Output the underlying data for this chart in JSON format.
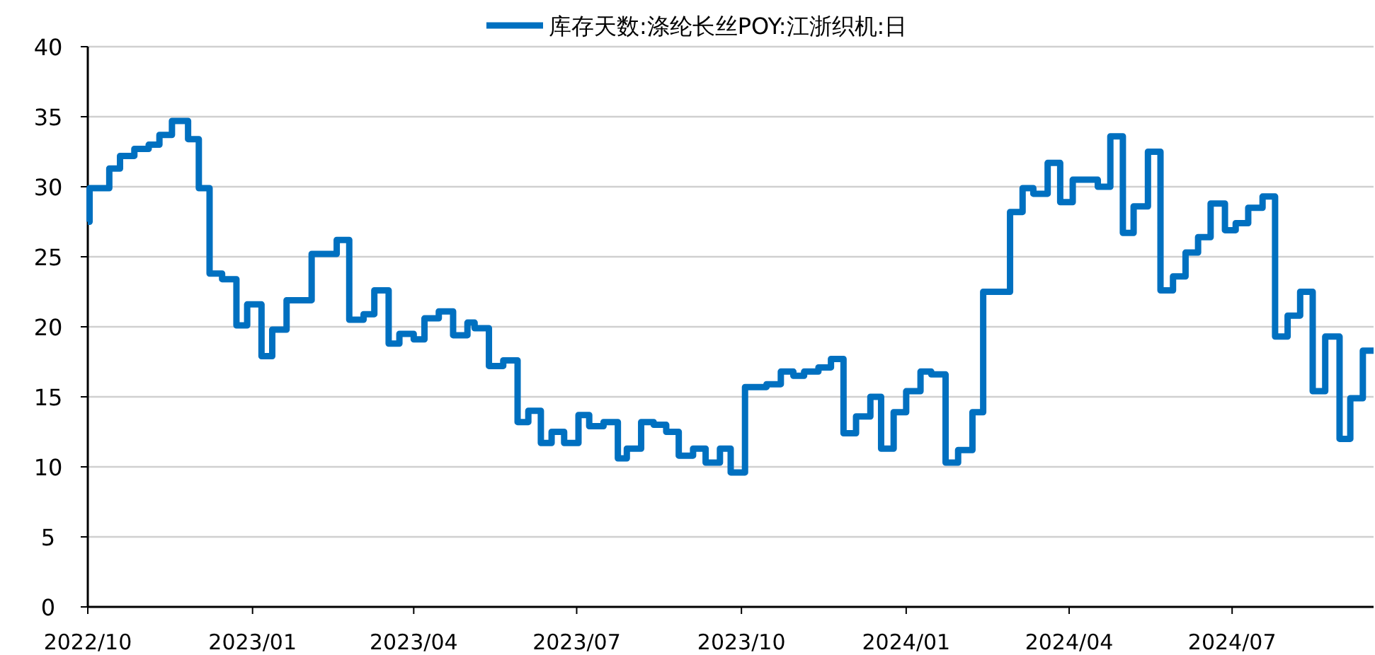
{
  "chart_data": {
    "type": "step",
    "legend": "top",
    "grid": "y",
    "line_style": "solid",
    "marker": "none",
    "xlim": [
      "2022-10-01",
      "2024-09-18"
    ],
    "xticks": [
      {
        "value": "2022-10-01",
        "label": "2022/10"
      },
      {
        "value": "2023-01-01",
        "label": "2023/01"
      },
      {
        "value": "2023-04-01",
        "label": "2023/04"
      },
      {
        "value": "2023-07-01",
        "label": "2023/07"
      },
      {
        "value": "2023-10-01",
        "label": "2023/10"
      },
      {
        "value": "2024-01-01",
        "label": "2024/01"
      },
      {
        "value": "2024-04-01",
        "label": "2024/04"
      },
      {
        "value": "2024-07-01",
        "label": "2024/07"
      }
    ],
    "ylim": [
      0,
      40
    ],
    "yticks": [
      0,
      5,
      10,
      15,
      20,
      25,
      30,
      35,
      40
    ],
    "x": [
      "2022-10-01",
      "2022-10-02",
      "2022-10-13",
      "2022-10-19",
      "2022-10-27",
      "2022-11-04",
      "2022-11-10",
      "2022-11-17",
      "2022-11-26",
      "2022-12-02",
      "2022-12-08",
      "2022-12-15",
      "2022-12-23",
      "2022-12-29",
      "2023-01-06",
      "2023-01-12",
      "2023-01-20",
      "2023-02-03",
      "2023-02-17",
      "2023-02-24",
      "2023-03-04",
      "2023-03-10",
      "2023-03-18",
      "2023-03-24",
      "2023-04-01",
      "2023-04-07",
      "2023-04-15",
      "2023-04-23",
      "2023-05-01",
      "2023-05-05",
      "2023-05-13",
      "2023-05-21",
      "2023-05-29",
      "2023-06-04",
      "2023-06-11",
      "2023-06-17",
      "2023-06-24",
      "2023-07-02",
      "2023-07-08",
      "2023-07-16",
      "2023-07-24",
      "2023-07-29",
      "2023-08-06",
      "2023-08-13",
      "2023-08-20",
      "2023-08-27",
      "2023-09-04",
      "2023-09-11",
      "2023-09-19",
      "2023-09-25",
      "2023-10-03",
      "2023-10-15",
      "2023-10-23",
      "2023-10-30",
      "2023-11-05",
      "2023-11-13",
      "2023-11-20",
      "2023-11-27",
      "2023-12-04",
      "2023-12-12",
      "2023-12-18",
      "2023-12-25",
      "2024-01-01",
      "2024-01-09",
      "2024-01-15",
      "2024-01-23",
      "2024-01-30",
      "2024-02-07",
      "2024-02-13",
      "2024-02-28",
      "2024-03-06",
      "2024-03-12",
      "2024-03-20",
      "2024-03-27",
      "2024-04-03",
      "2024-04-17",
      "2024-04-24",
      "2024-05-01",
      "2024-05-07",
      "2024-05-15",
      "2024-05-22",
      "2024-05-29",
      "2024-06-05",
      "2024-06-12",
      "2024-06-19",
      "2024-06-27",
      "2024-07-03",
      "2024-07-10",
      "2024-07-18",
      "2024-07-25",
      "2024-08-01",
      "2024-08-08",
      "2024-08-15",
      "2024-08-22",
      "2024-08-30",
      "2024-09-05",
      "2024-09-12",
      "2024-09-18"
    ],
    "series": [
      {
        "name": "库存天数:涤纶长丝POY:江浙织机:日",
        "color": "#0070c0",
        "values": [
          27.5,
          29.9,
          31.3,
          32.2,
          32.7,
          33.0,
          33.7,
          34.7,
          33.4,
          29.9,
          23.8,
          23.4,
          20.1,
          21.6,
          17.9,
          19.8,
          21.9,
          25.2,
          26.2,
          20.5,
          20.9,
          22.6,
          18.8,
          19.5,
          19.1,
          20.6,
          21.1,
          19.4,
          20.3,
          19.9,
          17.2,
          17.6,
          13.2,
          14.0,
          11.7,
          12.5,
          11.7,
          13.7,
          12.9,
          13.2,
          10.6,
          11.3,
          13.2,
          13.0,
          12.5,
          10.8,
          11.3,
          10.3,
          11.3,
          9.6,
          15.7,
          15.9,
          16.8,
          16.5,
          16.8,
          17.1,
          17.7,
          12.4,
          13.6,
          15.0,
          11.3,
          13.9,
          15.4,
          16.8,
          16.6,
          10.3,
          11.2,
          13.9,
          22.5,
          28.2,
          29.9,
          29.5,
          31.7,
          28.9,
          30.5,
          30.0,
          33.6,
          26.7,
          28.6,
          32.5,
          22.6,
          23.6,
          25.3,
          26.4,
          28.8,
          26.9,
          27.4,
          28.5,
          29.3,
          19.3,
          20.8,
          22.5,
          15.4,
          19.3,
          12.0,
          14.9,
          18.3,
          18.3
        ]
      }
    ]
  }
}
